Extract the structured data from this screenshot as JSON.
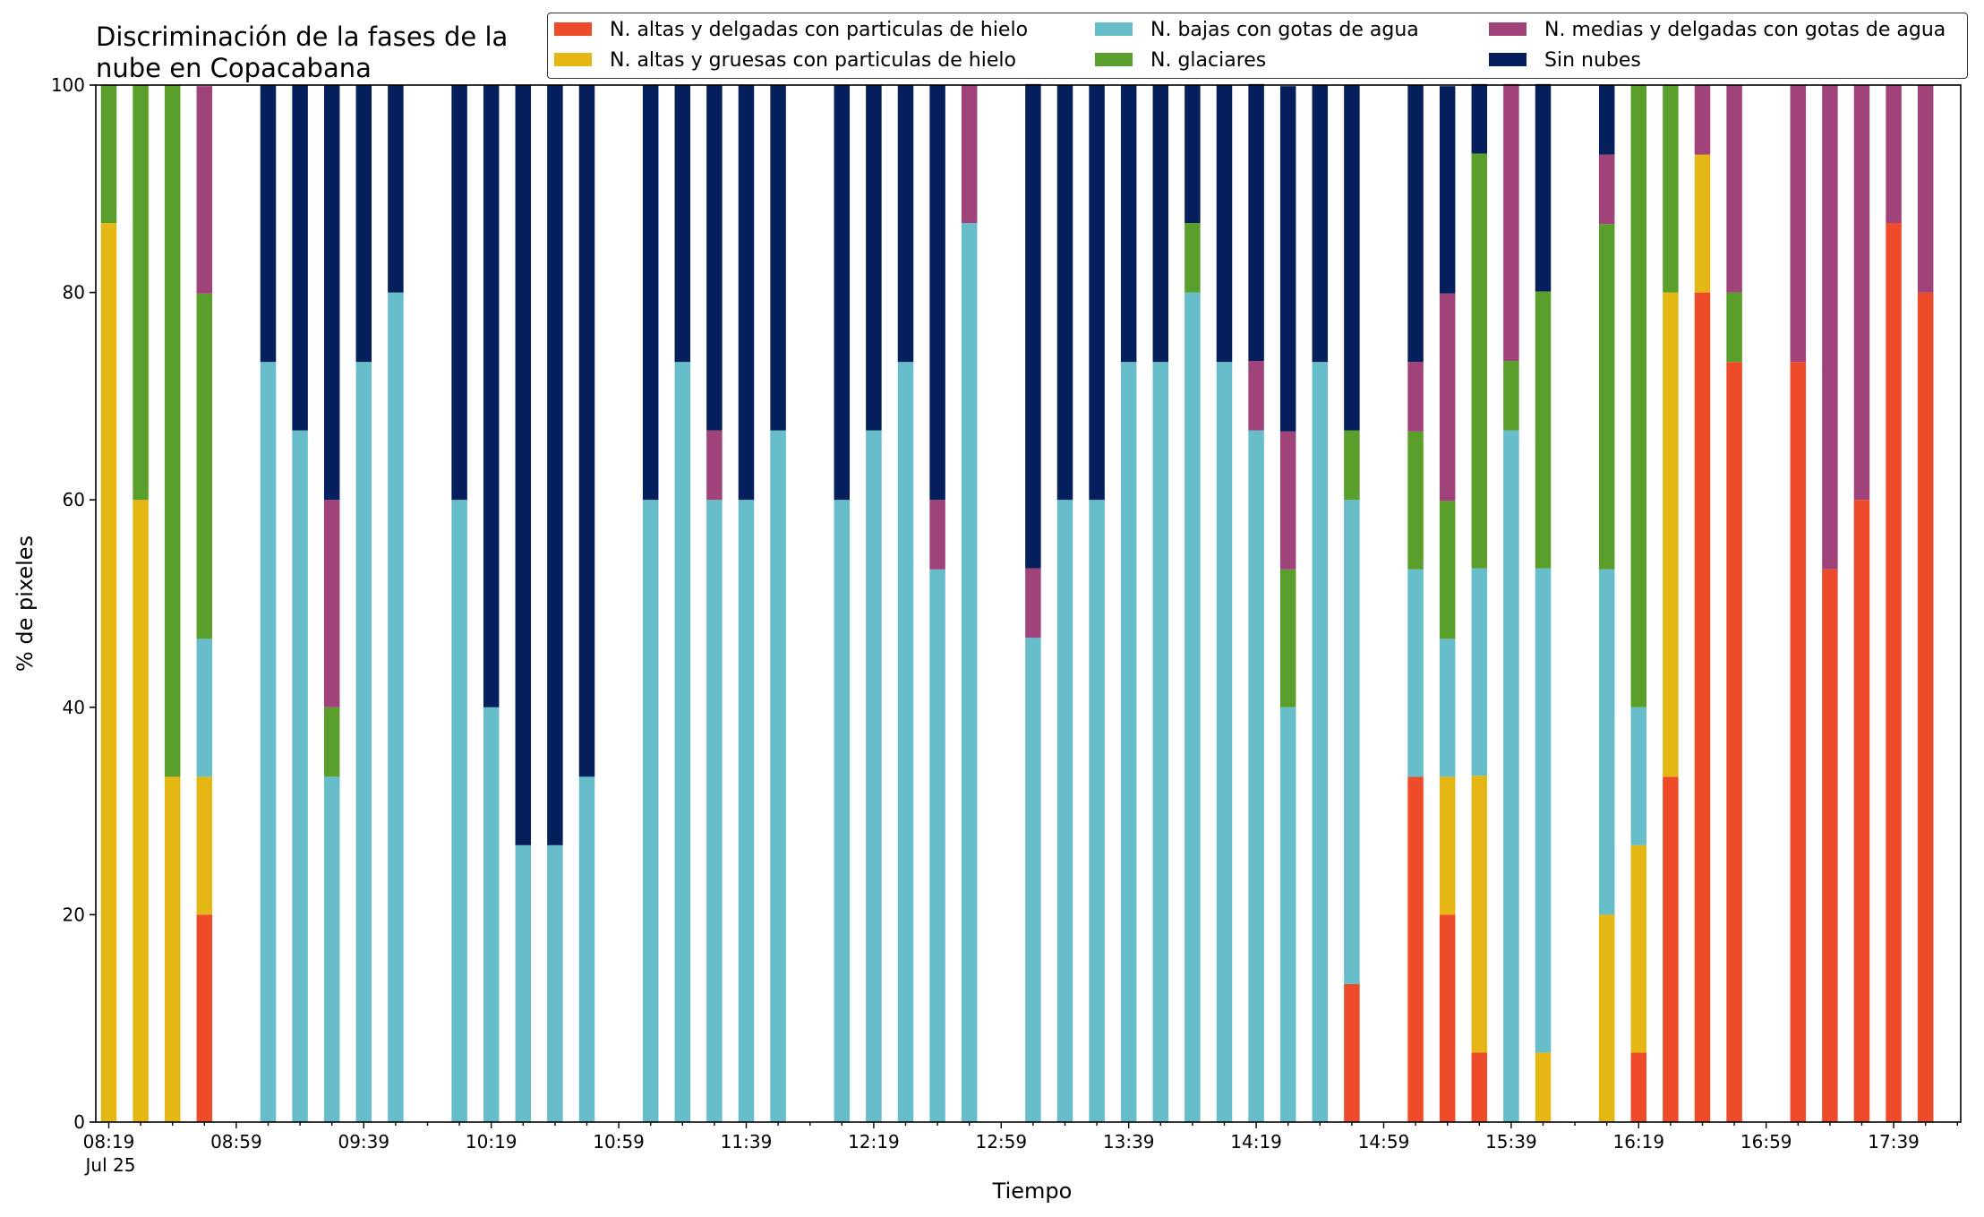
{
  "chart_data": {
    "type": "bar",
    "stacked": true,
    "title": "Discriminación de la fases de la nube en Copacabana",
    "xlabel": "Tiempo",
    "ylabel": "% de pixeles",
    "ylim": [
      0,
      100
    ],
    "yticks": [
      0,
      20,
      40,
      60,
      80,
      100
    ],
    "xticks": [
      "08:19",
      "08:59",
      "09:39",
      "10:19",
      "10:59",
      "11:39",
      "12:19",
      "12:59",
      "13:39",
      "14:19",
      "14:59",
      "15:39",
      "16:19",
      "16:59",
      "17:39"
    ],
    "x_date_label": "Jul 25",
    "legend_position": "top-right",
    "categories": [
      "08:19",
      "08:29",
      "08:39",
      "08:49",
      "08:59",
      "09:09",
      "09:19",
      "09:29",
      "09:39",
      "09:49",
      "09:59",
      "10:09",
      "10:19",
      "10:29",
      "10:39",
      "10:49",
      "10:59",
      "11:09",
      "11:19",
      "11:29",
      "11:39",
      "11:49",
      "11:59",
      "12:09",
      "12:19",
      "12:29",
      "12:39",
      "12:49",
      "12:59",
      "13:09",
      "13:19",
      "13:29",
      "13:39",
      "13:49",
      "13:59",
      "14:09",
      "14:19",
      "14:29",
      "14:39",
      "14:49",
      "14:59",
      "15:09",
      "15:19",
      "15:29",
      "15:39",
      "15:49",
      "15:59",
      "16:09",
      "16:19",
      "16:29",
      "16:39",
      "16:49",
      "16:59",
      "17:09",
      "17:19",
      "17:29",
      "17:39",
      "17:49"
    ],
    "series": [
      {
        "name": "N. altas y delgadas con particulas de hielo",
        "color": "#ee4b2b",
        "values": [
          0,
          0,
          0,
          20,
          null,
          0,
          0,
          0,
          0,
          0,
          null,
          0,
          0,
          0,
          0,
          0,
          null,
          0,
          0,
          0,
          0,
          0,
          null,
          0,
          0,
          0,
          0,
          0,
          null,
          0,
          0,
          0,
          0,
          0,
          0,
          0,
          0,
          0,
          0,
          13.3,
          null,
          33.3,
          20,
          6.7,
          0,
          0,
          null,
          0,
          6.7,
          33.3,
          80,
          73.3,
          null,
          73.3,
          53.3,
          60,
          86.7,
          80
        ]
      },
      {
        "name": "N. altas y gruesas con particulas de hielo",
        "color": "#e5b714",
        "values": [
          86.7,
          60,
          33.3,
          13.3,
          null,
          0,
          0,
          0,
          0,
          0,
          null,
          0,
          0,
          0,
          0,
          0,
          null,
          0,
          0,
          0,
          0,
          0,
          null,
          0,
          0,
          0,
          0,
          0,
          null,
          0,
          0,
          0,
          0,
          0,
          0,
          0,
          0,
          0,
          0,
          0,
          null,
          0,
          13.3,
          26.7,
          0,
          6.7,
          null,
          20,
          20,
          46.7,
          13.3,
          0,
          null,
          0,
          0,
          0,
          0,
          0
        ]
      },
      {
        "name": "N. bajas con gotas de agua",
        "color": "#67bdc9",
        "values": [
          0,
          0,
          0,
          13.3,
          null,
          73.3,
          66.7,
          33.3,
          73.3,
          80,
          null,
          60,
          40,
          26.7,
          26.7,
          33.3,
          null,
          60,
          73.3,
          60,
          60,
          66.7,
          null,
          60,
          66.7,
          73.3,
          53.3,
          86.7,
          null,
          46.7,
          60,
          60,
          73.3,
          73.3,
          80,
          73.3,
          66.7,
          40,
          73.3,
          46.7,
          null,
          20,
          13.3,
          20,
          66.7,
          46.7,
          null,
          33.3,
          13.3,
          0,
          0,
          0,
          null,
          0,
          0,
          0,
          0,
          0
        ]
      },
      {
        "name": "N. glaciares",
        "color": "#5a9e2c",
        "values": [
          13.3,
          40,
          66.7,
          33.3,
          null,
          0,
          0,
          6.7,
          0,
          0,
          null,
          0,
          0,
          0,
          0,
          0,
          null,
          0,
          0,
          0,
          0,
          0,
          null,
          0,
          0,
          0,
          0,
          0,
          null,
          0,
          0,
          0,
          0,
          0,
          6.7,
          0,
          0,
          13.3,
          0,
          6.7,
          null,
          13.3,
          13.3,
          40,
          6.7,
          26.7,
          null,
          33.3,
          60,
          20,
          0,
          6.7,
          null,
          0,
          0,
          0,
          0,
          0
        ]
      },
      {
        "name": "N. medias y delgadas con gotas de agua",
        "color": "#a1437b",
        "values": [
          0,
          0,
          0,
          20,
          null,
          0,
          0,
          20,
          0,
          0,
          null,
          0,
          0,
          0,
          0,
          0,
          null,
          0,
          0,
          6.7,
          0,
          0,
          null,
          0,
          0,
          0,
          6.7,
          13.3,
          null,
          6.7,
          0,
          0,
          0,
          0,
          0,
          0,
          6.7,
          13.3,
          0,
          0,
          null,
          6.7,
          20,
          0,
          26.7,
          0,
          null,
          6.7,
          0,
          0,
          6.7,
          20,
          null,
          26.7,
          46.7,
          40,
          13.3,
          20
        ]
      },
      {
        "name": "Sin nubes",
        "color": "#041f5c",
        "values": [
          0,
          0,
          0,
          0,
          null,
          26.7,
          33.3,
          40,
          26.7,
          20,
          null,
          40,
          60,
          73.3,
          73.3,
          66.7,
          null,
          40,
          26.7,
          33.3,
          40,
          33.3,
          null,
          40,
          33.3,
          26.7,
          40,
          0,
          null,
          46.7,
          40,
          40,
          26.7,
          26.7,
          13.3,
          26.7,
          26.7,
          33.3,
          26.7,
          33.3,
          null,
          26.7,
          20,
          6.7,
          0,
          20,
          null,
          6.7,
          0,
          0,
          0,
          0,
          null,
          0,
          0,
          0,
          0,
          0
        ]
      }
    ]
  }
}
